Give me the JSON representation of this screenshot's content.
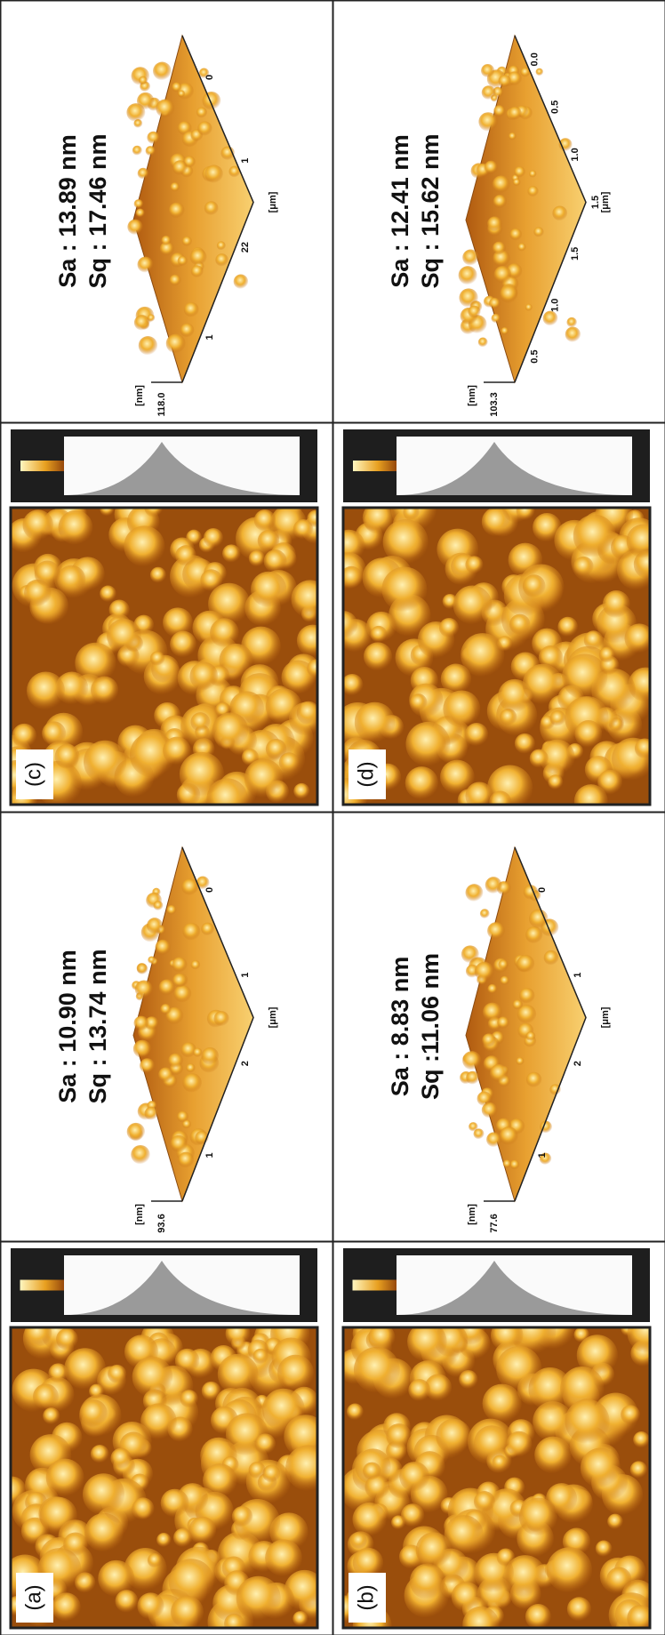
{
  "panels": [
    {
      "label": "(c)",
      "sa": "Sa : 13.89 nm",
      "sq": "Sq : 17.46 nm",
      "z_max": "118.0",
      "z_unit": "[nm]",
      "xy_unit": "[μm]",
      "ticks": [
        "1",
        "22",
        "1",
        "0"
      ]
    },
    {
      "label": "(d)",
      "sa": "Sa : 12.41 nm",
      "sq": "Sq : 15.62 nm",
      "z_max": "103.3",
      "z_unit": "[nm]",
      "xy_unit": "[μm]",
      "ticks": [
        "0.5",
        "1.0",
        "1.5",
        "1.5",
        "1.0",
        "0.5",
        "0.0"
      ]
    },
    {
      "label": "(a)",
      "sa": "Sa : 10.90 nm",
      "sq": "Sq : 13.74 nm",
      "z_max": "93.6",
      "z_unit": "[nm]",
      "xy_unit": "[μm]",
      "ticks": [
        "1",
        "2",
        "1",
        "0"
      ]
    },
    {
      "label": "(b)",
      "sa": "Sa : 8.83 nm",
      "sq": "Sq :11.06 nm",
      "z_max": "77.6",
      "z_unit": "[nm]",
      "xy_unit": "[μm]",
      "ticks": [
        "1",
        "2",
        "1",
        "0"
      ]
    }
  ]
}
